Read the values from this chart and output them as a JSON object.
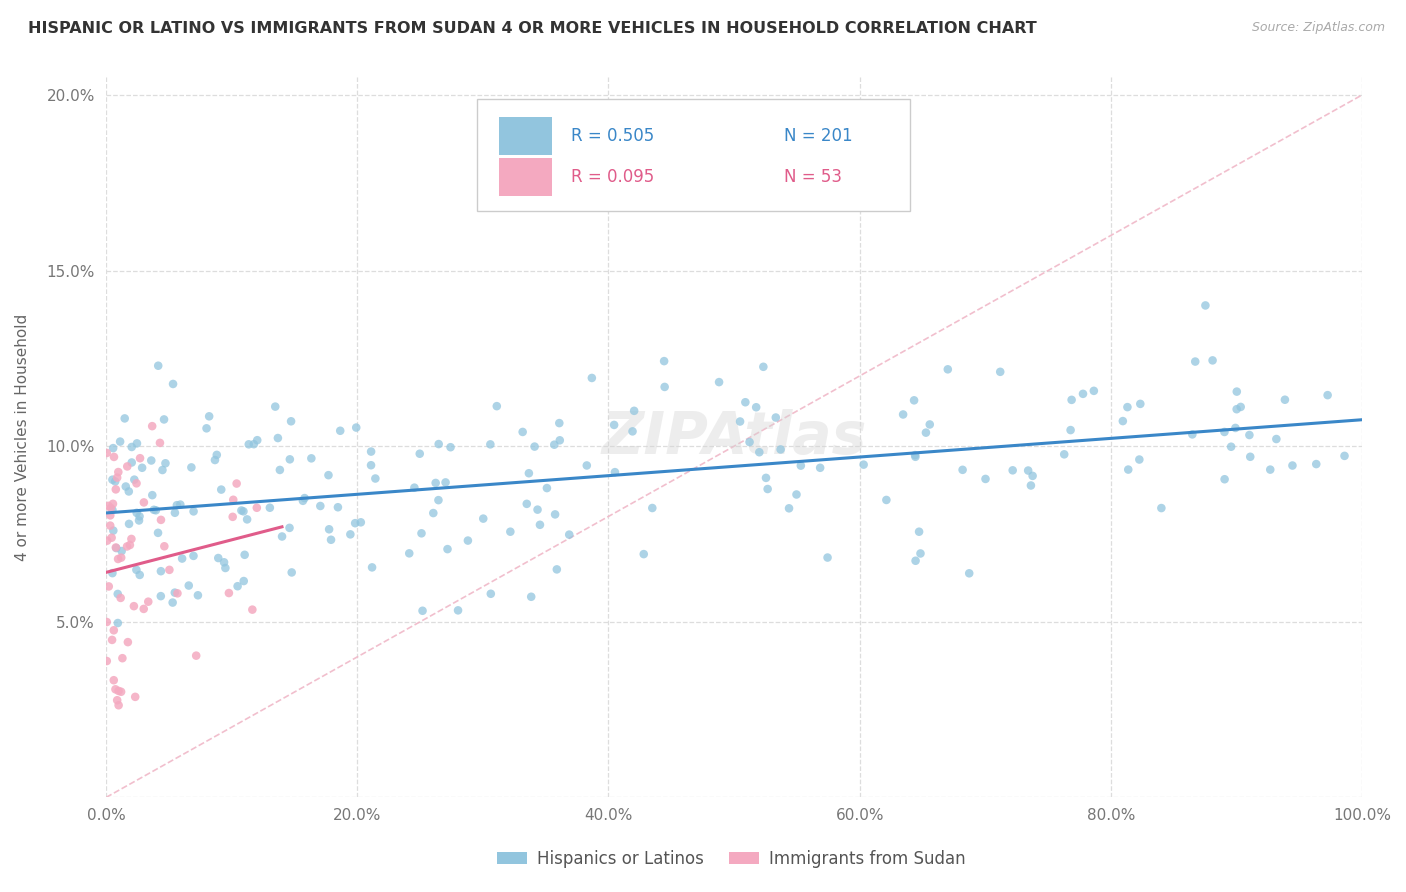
{
  "title": "HISPANIC OR LATINO VS IMMIGRANTS FROM SUDAN 4 OR MORE VEHICLES IN HOUSEHOLD CORRELATION CHART",
  "source": "Source: ZipAtlas.com",
  "ylabel": "4 or more Vehicles in Household",
  "blue_R": 0.505,
  "blue_N": 201,
  "pink_R": 0.095,
  "pink_N": 53,
  "blue_color": "#92c5de",
  "pink_color": "#f4a9c0",
  "blue_trend_color": "#3a87c8",
  "pink_trend_color": "#e05c8a",
  "diag_color": "#f0b8c8",
  "legend_label_blue": "Hispanics or Latinos",
  "legend_label_pink": "Immigrants from Sudan",
  "watermark": "ZIPAtlas",
  "xlim": [
    0,
    100
  ],
  "ylim": [
    0,
    20.5
  ],
  "xticks": [
    0,
    20,
    40,
    60,
    80,
    100
  ],
  "yticks": [
    0,
    5,
    10,
    15,
    20
  ],
  "xticklabels": [
    "0.0%",
    "20.0%",
    "40.0%",
    "60.0%",
    "80.0%",
    "100.0%"
  ],
  "yticklabels": [
    "",
    "5.0%",
    "10.0%",
    "15.0%",
    "20.0%"
  ],
  "title_fontsize": 11.5,
  "source_fontsize": 9,
  "tick_fontsize": 11,
  "ylabel_fontsize": 11,
  "legend_fontsize": 12
}
